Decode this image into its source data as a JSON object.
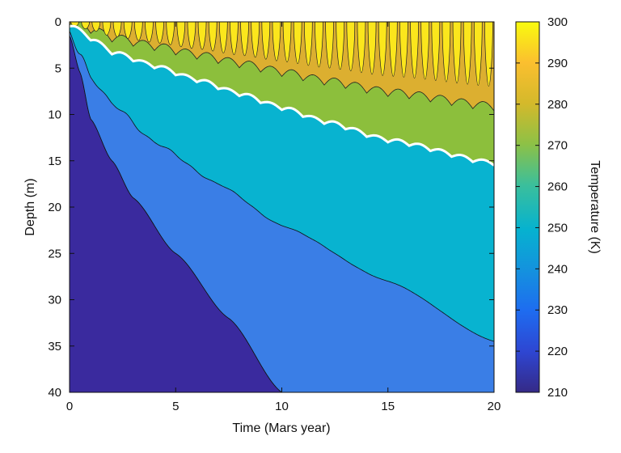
{
  "chart_data": {
    "type": "heatmap",
    "title": "",
    "xlabel": "Time (Mars year)",
    "ylabel": "Depth (m)",
    "colorbar_label": "Temperature (K)",
    "xlim": [
      0,
      20
    ],
    "ylim": [
      0,
      40
    ],
    "y_reversed": true,
    "color_range": [
      210,
      300
    ],
    "x_ticks": [
      0,
      5,
      10,
      15,
      20
    ],
    "y_ticks": [
      0,
      5,
      10,
      15,
      20,
      25,
      30,
      35,
      40
    ],
    "colorbar_ticks": [
      210,
      220,
      230,
      240,
      250,
      260,
      270,
      280,
      290,
      300
    ],
    "grid": false,
    "colormap": "parula",
    "regions": [
      {
        "range_K": [
          210,
          220
        ],
        "color": "#3a2a9e",
        "boundary_depth_at_x": [
          [
            0,
            1.5
          ],
          [
            0.5,
            5.5
          ],
          [
            1,
            10.5
          ],
          [
            2,
            15
          ],
          [
            3,
            19
          ],
          [
            5,
            25
          ],
          [
            7.5,
            32
          ],
          [
            10,
            40
          ]
        ]
      },
      {
        "range_K": [
          220,
          240
        ],
        "color": "#3a7ee6",
        "boundary_depth_at_x": [
          [
            0,
            1
          ],
          [
            0.5,
            3.5
          ],
          [
            1,
            6
          ],
          [
            2,
            8.8
          ],
          [
            4,
            13
          ],
          [
            7,
            17.5
          ],
          [
            10,
            22
          ],
          [
            15,
            28
          ],
          [
            20,
            34.5
          ]
        ]
      },
      {
        "range_K": [
          240,
          260
        ],
        "color": "#08b3d0",
        "boundary_depth_at_x": [
          [
            0,
            0.5
          ],
          [
            1,
            2
          ],
          [
            2,
            3.5
          ],
          [
            4,
            5
          ],
          [
            6,
            6.5
          ],
          [
            8,
            8
          ],
          [
            10,
            9.5
          ],
          [
            12,
            11
          ],
          [
            15,
            13
          ],
          [
            20,
            15.5
          ]
        ]
      },
      {
        "range_K": [
          260,
          300
        ],
        "color": "#8cbf3c",
        "note": "seasonal temperature oscillation near the surface"
      }
    ]
  }
}
